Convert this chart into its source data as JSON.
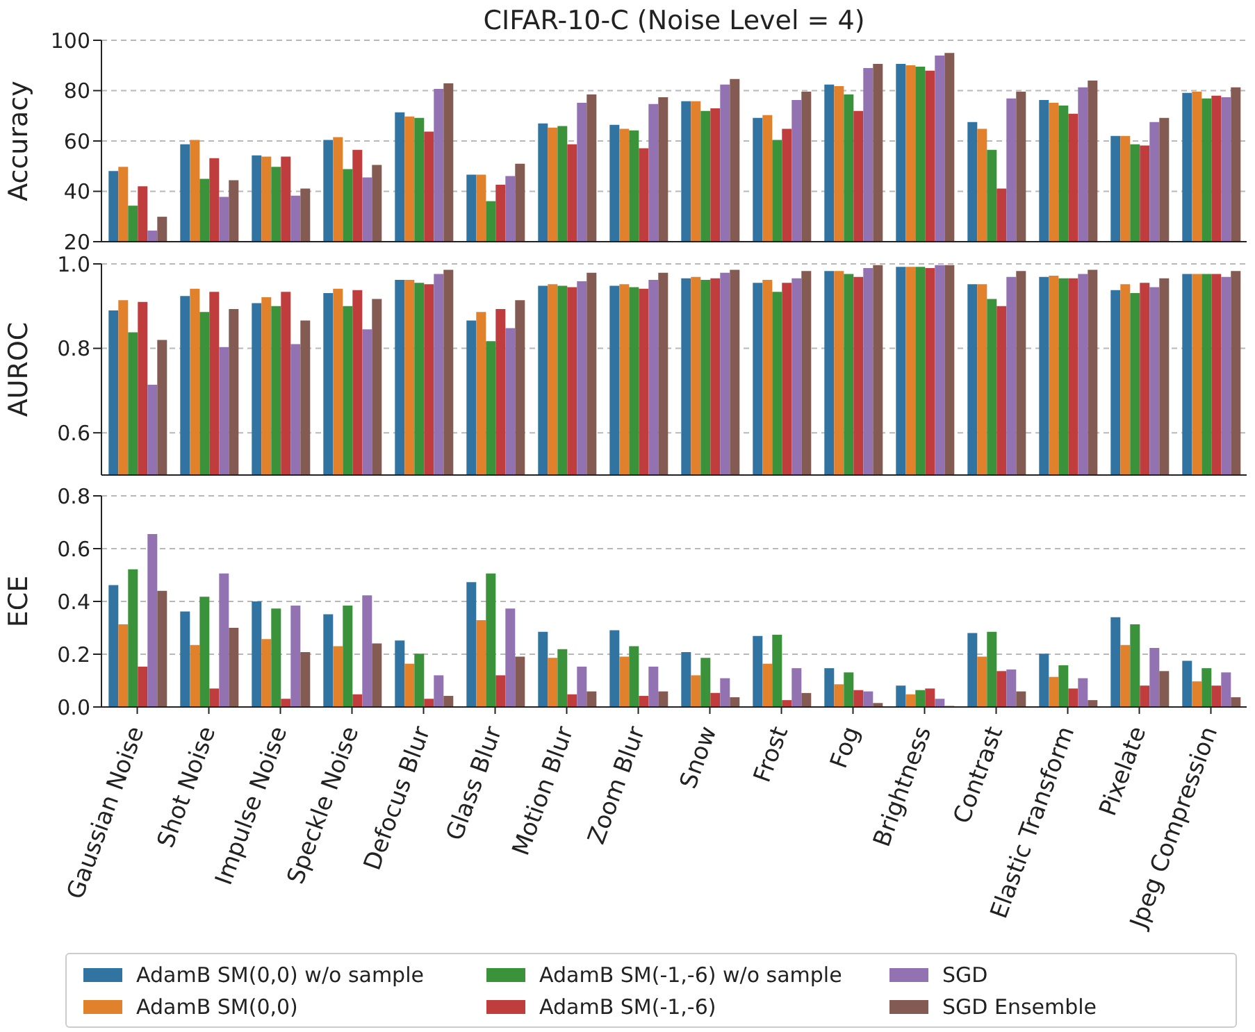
{
  "chart_data": [
    {
      "type": "bar",
      "title": "CIFAR-10-C (Noise Level = 4)",
      "ylabel": "Accuracy",
      "categories": [
        null,
        null,
        null,
        null,
        null,
        null,
        null,
        null,
        null,
        null,
        null,
        null,
        null,
        null,
        null,
        null
      ],
      "series": [
        {
          "name": "AdamB SM(0,0) w/o sample",
          "color": "#3274a1",
          "values": [
            48.1,
            58.7,
            54.3,
            60.4,
            71.4,
            46.6,
            67.0,
            66.4,
            75.8,
            69.2,
            82.4,
            90.6,
            67.5,
            76.3,
            62.0,
            79.1
          ]
        },
        {
          "name": "AdamB SM(0,0)",
          "color": "#e1812c",
          "values": [
            49.7,
            60.4,
            53.8,
            61.5,
            69.7,
            46.6,
            65.3,
            64.8,
            75.8,
            70.3,
            81.8,
            90.1,
            64.8,
            75.2,
            62.0,
            79.6
          ]
        },
        {
          "name": "AdamB SM(-1,-6) w/o sample",
          "color": "#3a923a",
          "values": [
            34.3,
            45.0,
            49.7,
            48.8,
            69.2,
            36.1,
            65.9,
            64.2,
            71.9,
            60.4,
            78.5,
            89.5,
            56.5,
            74.1,
            58.7,
            76.9
          ]
        },
        {
          "name": "AdamB SM(-1,-6)",
          "color": "#c03d3e",
          "values": [
            42.0,
            53.2,
            53.8,
            56.5,
            63.7,
            42.6,
            58.7,
            57.1,
            73.0,
            64.8,
            71.9,
            87.9,
            41.1,
            70.8,
            58.2,
            78.0
          ]
        },
        {
          "name": "SGD",
          "color": "#9372b2",
          "values": [
            24.4,
            37.8,
            38.3,
            45.5,
            80.7,
            46.1,
            75.2,
            74.7,
            82.4,
            76.3,
            89.0,
            93.9,
            76.9,
            81.3,
            67.5,
            77.4
          ]
        },
        {
          "name": "SGD Ensemble",
          "color": "#845b53",
          "values": [
            29.9,
            44.4,
            41.1,
            50.5,
            82.9,
            51.0,
            78.5,
            77.4,
            84.6,
            79.6,
            90.6,
            95.0,
            79.6,
            84.0,
            69.2,
            81.3
          ]
        }
      ],
      "ylim": [
        20,
        100
      ],
      "yticks": [
        20,
        40,
        60,
        80,
        100
      ],
      "grid": "y",
      "tick_labels": "y",
      "legend": "bottom"
    },
    {
      "type": "bar",
      "ylabel": "AUROC",
      "categories": [
        null,
        null,
        null,
        null,
        null,
        null,
        null,
        null,
        null,
        null,
        null,
        null,
        null,
        null,
        null,
        null
      ],
      "series": [
        {
          "color": "#3274a1",
          "values": [
            0.89,
            0.924,
            0.907,
            0.931,
            0.962,
            0.866,
            0.948,
            0.948,
            0.966,
            0.955,
            0.983,
            0.993,
            0.952,
            0.969,
            0.938,
            0.976
          ]
        },
        {
          "color": "#e1812c",
          "values": [
            0.914,
            0.941,
            0.921,
            0.941,
            0.962,
            0.886,
            0.952,
            0.952,
            0.969,
            0.962,
            0.983,
            0.993,
            0.952,
            0.972,
            0.952,
            0.976
          ]
        },
        {
          "color": "#3a923a",
          "values": [
            0.838,
            0.886,
            0.9,
            0.9,
            0.955,
            0.817,
            0.948,
            0.945,
            0.962,
            0.934,
            0.976,
            0.993,
            0.917,
            0.966,
            0.931,
            0.976
          ]
        },
        {
          "color": "#c03d3e",
          "values": [
            0.91,
            0.934,
            0.934,
            0.938,
            0.952,
            0.893,
            0.945,
            0.941,
            0.966,
            0.955,
            0.969,
            0.99,
            0.9,
            0.966,
            0.955,
            0.976
          ]
        },
        {
          "color": "#9372b2",
          "values": [
            0.714,
            0.803,
            0.81,
            0.845,
            0.976,
            0.848,
            0.959,
            0.962,
            0.979,
            0.966,
            0.99,
            0.997,
            0.969,
            0.976,
            0.945,
            0.969
          ]
        },
        {
          "color": "#845b53",
          "values": [
            0.82,
            0.893,
            0.866,
            0.917,
            0.986,
            0.914,
            0.979,
            0.979,
            0.986,
            0.983,
            0.997,
            0.997,
            0.983,
            0.986,
            0.966,
            0.983
          ]
        }
      ],
      "ylim": [
        0.5,
        1.0
      ],
      "yticks": [
        0.6,
        0.8,
        {
          "value": 1.0,
          "label": "1.0"
        }
      ],
      "grid": "y",
      "tick_labels": "y"
    },
    {
      "type": "bar",
      "ylabel": "ECE",
      "categories": [
        "Gaussian Noise",
        "Shot Noise",
        "Impulse Noise",
        "Speckle Noise",
        "Defocus Blur",
        "Glass Blur",
        "Motion Blur",
        "Zoom Blur",
        "Snow",
        "Frost",
        "Fog",
        "Brightness",
        "Contrast",
        "Elastic Transform",
        "Pixelate",
        "Jpeg Compression"
      ],
      "series": [
        {
          "color": "#3274a1",
          "values": [
            0.462,
            0.362,
            0.4,
            0.351,
            0.252,
            0.473,
            0.285,
            0.291,
            0.208,
            0.269,
            0.147,
            0.081,
            0.28,
            0.202,
            0.34,
            0.175
          ]
        },
        {
          "color": "#e1812c",
          "values": [
            0.313,
            0.235,
            0.257,
            0.23,
            0.164,
            0.329,
            0.186,
            0.191,
            0.12,
            0.164,
            0.086,
            0.048,
            0.191,
            0.114,
            0.235,
            0.097
          ]
        },
        {
          "color": "#3a923a",
          "values": [
            0.522,
            0.418,
            0.373,
            0.384,
            0.202,
            0.506,
            0.219,
            0.23,
            0.186,
            0.274,
            0.131,
            0.064,
            0.285,
            0.158,
            0.313,
            0.147
          ]
        },
        {
          "color": "#c03d3e",
          "values": [
            0.153,
            0.07,
            0.031,
            0.048,
            0.031,
            0.12,
            0.048,
            0.042,
            0.053,
            0.026,
            0.064,
            0.07,
            0.136,
            0.07,
            0.081,
            0.081
          ]
        },
        {
          "color": "#9372b2",
          "values": [
            0.655,
            0.506,
            0.384,
            0.423,
            0.12,
            0.373,
            0.153,
            0.153,
            0.109,
            0.147,
            0.059,
            0.031,
            0.142,
            0.109,
            0.224,
            0.131
          ]
        },
        {
          "color": "#845b53",
          "values": [
            0.44,
            0.3,
            0.208,
            0.241,
            0.042,
            0.191,
            0.059,
            0.059,
            0.037,
            0.053,
            0.015,
            0.004,
            0.059,
            0.026,
            0.136,
            0.037
          ]
        }
      ],
      "ylim": [
        0,
        0.8
      ],
      "yticks": [
        {
          "value": 0,
          "label": "0.0"
        },
        0.2,
        0.4,
        0.6,
        0.8
      ],
      "grid": "y"
    }
  ]
}
